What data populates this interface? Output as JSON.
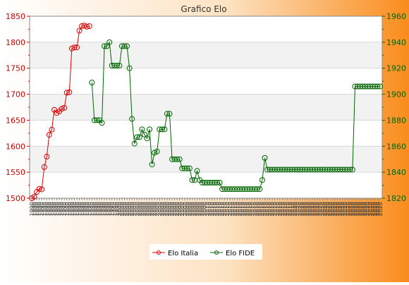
{
  "chart_data": {
    "type": "line",
    "title": "Grafico Elo",
    "left_axis": {
      "series": "Elo Italia",
      "ylim": [
        1500,
        1850
      ],
      "ticks": [
        1500,
        1550,
        1600,
        1650,
        1700,
        1750,
        1800,
        1850
      ]
    },
    "right_axis": {
      "series": "Elo FIDE",
      "ylim": [
        1820,
        1960
      ],
      "ticks": [
        1820,
        1840,
        1860,
        1880,
        1900,
        1920,
        1940,
        1960
      ]
    },
    "x_tick_labels": [
      "1990",
      "2000",
      "2010",
      "2020"
    ],
    "grid": true,
    "legend_position": "bottom",
    "series": [
      {
        "name": "Elo Italia",
        "axis": "left",
        "color": "#dd0000",
        "points": [
          [
            1993.0,
            1500
          ],
          [
            1993.3,
            1503
          ],
          [
            1993.7,
            1512
          ],
          [
            1994.0,
            1518
          ],
          [
            1994.3,
            1517
          ],
          [
            1994.7,
            1560
          ],
          [
            1995.0,
            1580
          ],
          [
            1995.3,
            1622
          ],
          [
            1995.6,
            1632
          ],
          [
            1996.0,
            1670
          ],
          [
            1996.3,
            1664
          ],
          [
            1996.6,
            1667
          ],
          [
            1997.0,
            1672
          ],
          [
            1997.3,
            1674
          ],
          [
            1997.6,
            1703
          ],
          [
            1998.0,
            1704
          ],
          [
            1998.3,
            1788
          ],
          [
            1998.6,
            1790
          ],
          [
            1999.0,
            1790
          ],
          [
            1999.3,
            1822
          ],
          [
            1999.6,
            1831
          ],
          [
            2000.0,
            1832
          ],
          [
            2000.3,
            1830
          ],
          [
            2000.6,
            1831
          ]
        ]
      },
      {
        "name": "Elo FIDE",
        "axis": "right",
        "color": "#006600",
        "points": [
          [
            2001.3,
            1909
          ],
          [
            2001.7,
            1880
          ],
          [
            2002.0,
            1880
          ],
          [
            2002.4,
            1880
          ],
          [
            2002.8,
            1878
          ],
          [
            2003.2,
            1937
          ],
          [
            2003.6,
            1937
          ],
          [
            2004.0,
            1940
          ],
          [
            2004.4,
            1922
          ],
          [
            2004.8,
            1922
          ],
          [
            2005.2,
            1922
          ],
          [
            2005.6,
            1922
          ],
          [
            2006.0,
            1937
          ],
          [
            2006.4,
            1937
          ],
          [
            2006.8,
            1937
          ],
          [
            2007.2,
            1920
          ],
          [
            2007.6,
            1881
          ],
          [
            2008.0,
            1862
          ],
          [
            2008.4,
            1867
          ],
          [
            2008.8,
            1867
          ],
          [
            2009.2,
            1873
          ],
          [
            2009.6,
            1869
          ],
          [
            2010.0,
            1866
          ],
          [
            2010.4,
            1873
          ],
          [
            2010.8,
            1846
          ],
          [
            2011.2,
            1855
          ],
          [
            2011.6,
            1856
          ],
          [
            2012.0,
            1873
          ],
          [
            2012.4,
            1873
          ],
          [
            2012.8,
            1873
          ],
          [
            2013.2,
            1885
          ],
          [
            2013.6,
            1885
          ],
          [
            2014.0,
            1850
          ],
          [
            2014.4,
            1850
          ],
          [
            2014.8,
            1850
          ],
          [
            2015.2,
            1850
          ],
          [
            2015.6,
            1843
          ],
          [
            2016.0,
            1843
          ],
          [
            2016.4,
            1843
          ],
          [
            2016.8,
            1843
          ],
          [
            2017.2,
            1834
          ],
          [
            2017.6,
            1834
          ],
          [
            2018.0,
            1841
          ],
          [
            2018.4,
            1834
          ],
          [
            2018.8,
            1832
          ],
          [
            2019.2,
            1832
          ],
          [
            2019.6,
            1832
          ],
          [
            2020.0,
            1832
          ],
          [
            2020.4,
            1832
          ],
          [
            2020.8,
            1832
          ],
          [
            2021.2,
            1832
          ],
          [
            2021.6,
            1832
          ],
          [
            2022.0,
            1827
          ],
          [
            2022.4,
            1827
          ],
          [
            2022.8,
            1827
          ],
          [
            2023.2,
            1827
          ],
          [
            2023.6,
            1827
          ],
          [
            2024.0,
            1827
          ],
          [
            2024.4,
            1827
          ],
          [
            2024.8,
            1827
          ],
          [
            2025.2,
            1827
          ],
          [
            2025.6,
            1827
          ],
          [
            2026.0,
            1827
          ],
          [
            2026.4,
            1827
          ],
          [
            2026.8,
            1827
          ],
          [
            2027.2,
            1827
          ],
          [
            2027.6,
            1827
          ],
          [
            2028.0,
            1827
          ],
          [
            2028.4,
            1834
          ],
          [
            2028.8,
            1851
          ],
          [
            2029.2,
            1842
          ],
          [
            2030,
            1842
          ],
          [
            2035,
            1842
          ],
          [
            2040,
            1842
          ],
          [
            2045,
            1842
          ],
          [
            2050,
            1842
          ],
          [
            2055,
            1842
          ],
          [
            2060,
            1842
          ],
          [
            2065,
            1842
          ],
          [
            2070,
            1842
          ],
          [
            2075,
            1842
          ],
          [
            2080,
            1842
          ],
          [
            2085,
            1842
          ],
          [
            2090,
            1842
          ],
          [
            2095,
            1842
          ],
          [
            2100,
            1842
          ],
          [
            2105,
            1842
          ],
          [
            2110,
            1842
          ],
          [
            2115,
            1842
          ],
          [
            2120,
            1842
          ],
          [
            2125,
            1842
          ],
          [
            2130,
            1842
          ],
          [
            2135,
            1842
          ],
          [
            2140,
            1842
          ],
          [
            2145,
            1842
          ],
          [
            2150,
            1842
          ],
          [
            2155,
            1842
          ],
          [
            2160,
            1842
          ],
          [
            2165,
            1842
          ],
          [
            2170,
            1842
          ],
          [
            2175,
            1842
          ],
          [
            2180,
            1842
          ],
          [
            2185,
            1842
          ],
          [
            2190,
            1842
          ],
          [
            2194,
            1842
          ],
          [
            2195,
            1906
          ],
          [
            2198,
            1906
          ],
          [
            2201,
            1906
          ],
          [
            2204,
            1906
          ],
          [
            2207,
            1906
          ],
          [
            2210,
            1906
          ],
          [
            2213,
            1906
          ],
          [
            2216,
            1906
          ],
          [
            2219,
            1906
          ],
          [
            2222,
            1906
          ],
          [
            2225,
            1906
          ]
        ]
      }
    ]
  }
}
